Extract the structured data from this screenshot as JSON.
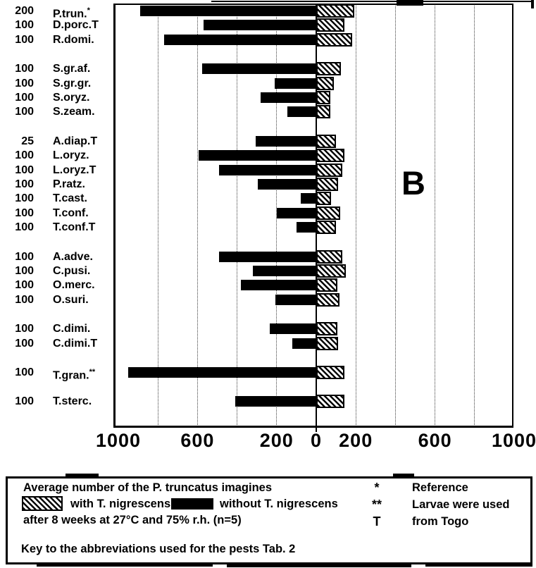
{
  "colors": {
    "ink": "#000000",
    "paper": "#ffffff"
  },
  "chart_data": {
    "type": "bar",
    "orientation": "horizontal-diverging",
    "panel_label": "B",
    "xlim": [
      -1000,
      1000
    ],
    "grid": true,
    "gridline_step": 200,
    "axis_ticks": [
      -1000,
      -600,
      -200,
      0,
      200,
      600,
      1000
    ],
    "axis_tick_labels": [
      "1000",
      "600",
      "200",
      "0",
      "200",
      "600",
      "1000"
    ],
    "series_left_name": "without T. nigrescens",
    "series_right_name": "with T. nigrescens",
    "value_meaning": "Average number of the P. truncatus imagines after 8 weeks at 27°C and 75% r.h. (n=5)",
    "rows": [
      {
        "count": "200",
        "label": "P.trun.",
        "sup": "*",
        "group": 0,
        "without_value": 890,
        "with_value": 180
      },
      {
        "count": "100",
        "label": "D.porc.T",
        "sup": "",
        "group": 0,
        "without_value": 570,
        "with_value": 130
      },
      {
        "count": "100",
        "label": "R.domi.",
        "sup": "",
        "group": 0,
        "without_value": 770,
        "with_value": 170
      },
      {
        "count": "100",
        "label": "S.gr.af.",
        "sup": "",
        "group": 1,
        "without_value": 575,
        "with_value": 115
      },
      {
        "count": "100",
        "label": "S.gr.gr.",
        "sup": "",
        "group": 1,
        "without_value": 210,
        "with_value": 80
      },
      {
        "count": "100",
        "label": "S.oryz.",
        "sup": "",
        "group": 1,
        "without_value": 280,
        "with_value": 60
      },
      {
        "count": "100",
        "label": "S.zeam.",
        "sup": "",
        "group": 1,
        "without_value": 145,
        "with_value": 60
      },
      {
        "count": "25",
        "label": "A.diap.T",
        "sup": "",
        "group": 2,
        "without_value": 305,
        "with_value": 90
      },
      {
        "count": "100",
        "label": "L.oryz.",
        "sup": "",
        "group": 2,
        "without_value": 595,
        "with_value": 130
      },
      {
        "count": "100",
        "label": "L.oryz.T",
        "sup": "",
        "group": 2,
        "without_value": 490,
        "with_value": 120
      },
      {
        "count": "100",
        "label": "P.ratz.",
        "sup": "",
        "group": 2,
        "without_value": 295,
        "with_value": 100
      },
      {
        "count": "100",
        "label": "T.cast.",
        "sup": "",
        "group": 2,
        "without_value": 80,
        "with_value": 65
      },
      {
        "count": "100",
        "label": "T.conf.",
        "sup": "",
        "group": 2,
        "without_value": 200,
        "with_value": 110
      },
      {
        "count": "100",
        "label": "T.conf.T",
        "sup": "",
        "group": 2,
        "without_value": 100,
        "with_value": 90
      },
      {
        "count": "100",
        "label": "A.adve.",
        "sup": "",
        "group": 3,
        "without_value": 490,
        "with_value": 120
      },
      {
        "count": "100",
        "label": "C.pusi.",
        "sup": "",
        "group": 3,
        "without_value": 320,
        "with_value": 140
      },
      {
        "count": "100",
        "label": "O.merc.",
        "sup": "",
        "group": 3,
        "without_value": 380,
        "with_value": 95
      },
      {
        "count": "100",
        "label": "O.suri.",
        "sup": "",
        "group": 3,
        "without_value": 205,
        "with_value": 105
      },
      {
        "count": "100",
        "label": "C.dimi.",
        "sup": "",
        "group": 4,
        "without_value": 235,
        "with_value": 95
      },
      {
        "count": "100",
        "label": "C.dimi.T",
        "sup": "",
        "group": 4,
        "without_value": 120,
        "with_value": 100
      },
      {
        "count": "100",
        "label": "T.gran.",
        "sup": "**",
        "group": 5,
        "without_value": 950,
        "with_value": 130
      },
      {
        "count": "100",
        "label": "T.sterc.",
        "sup": "",
        "group": 6,
        "without_value": 410,
        "with_value": 130
      }
    ]
  },
  "legend": {
    "line_average": "Average number of the P. truncatus imagines",
    "hatched_label": "with T. nigrescens,",
    "black_label": "without T. nigrescens",
    "conditions_line": "after 8 weeks at 27°C and 75% r.h. (n=5)",
    "key_line": "Key to the abbreviations used for the pests Tab. 2",
    "notes": [
      {
        "symbol": "*",
        "text": "Reference"
      },
      {
        "symbol": "**",
        "text": "Larvae were used"
      },
      {
        "symbol": "T",
        "text": "from Togo"
      }
    ]
  }
}
